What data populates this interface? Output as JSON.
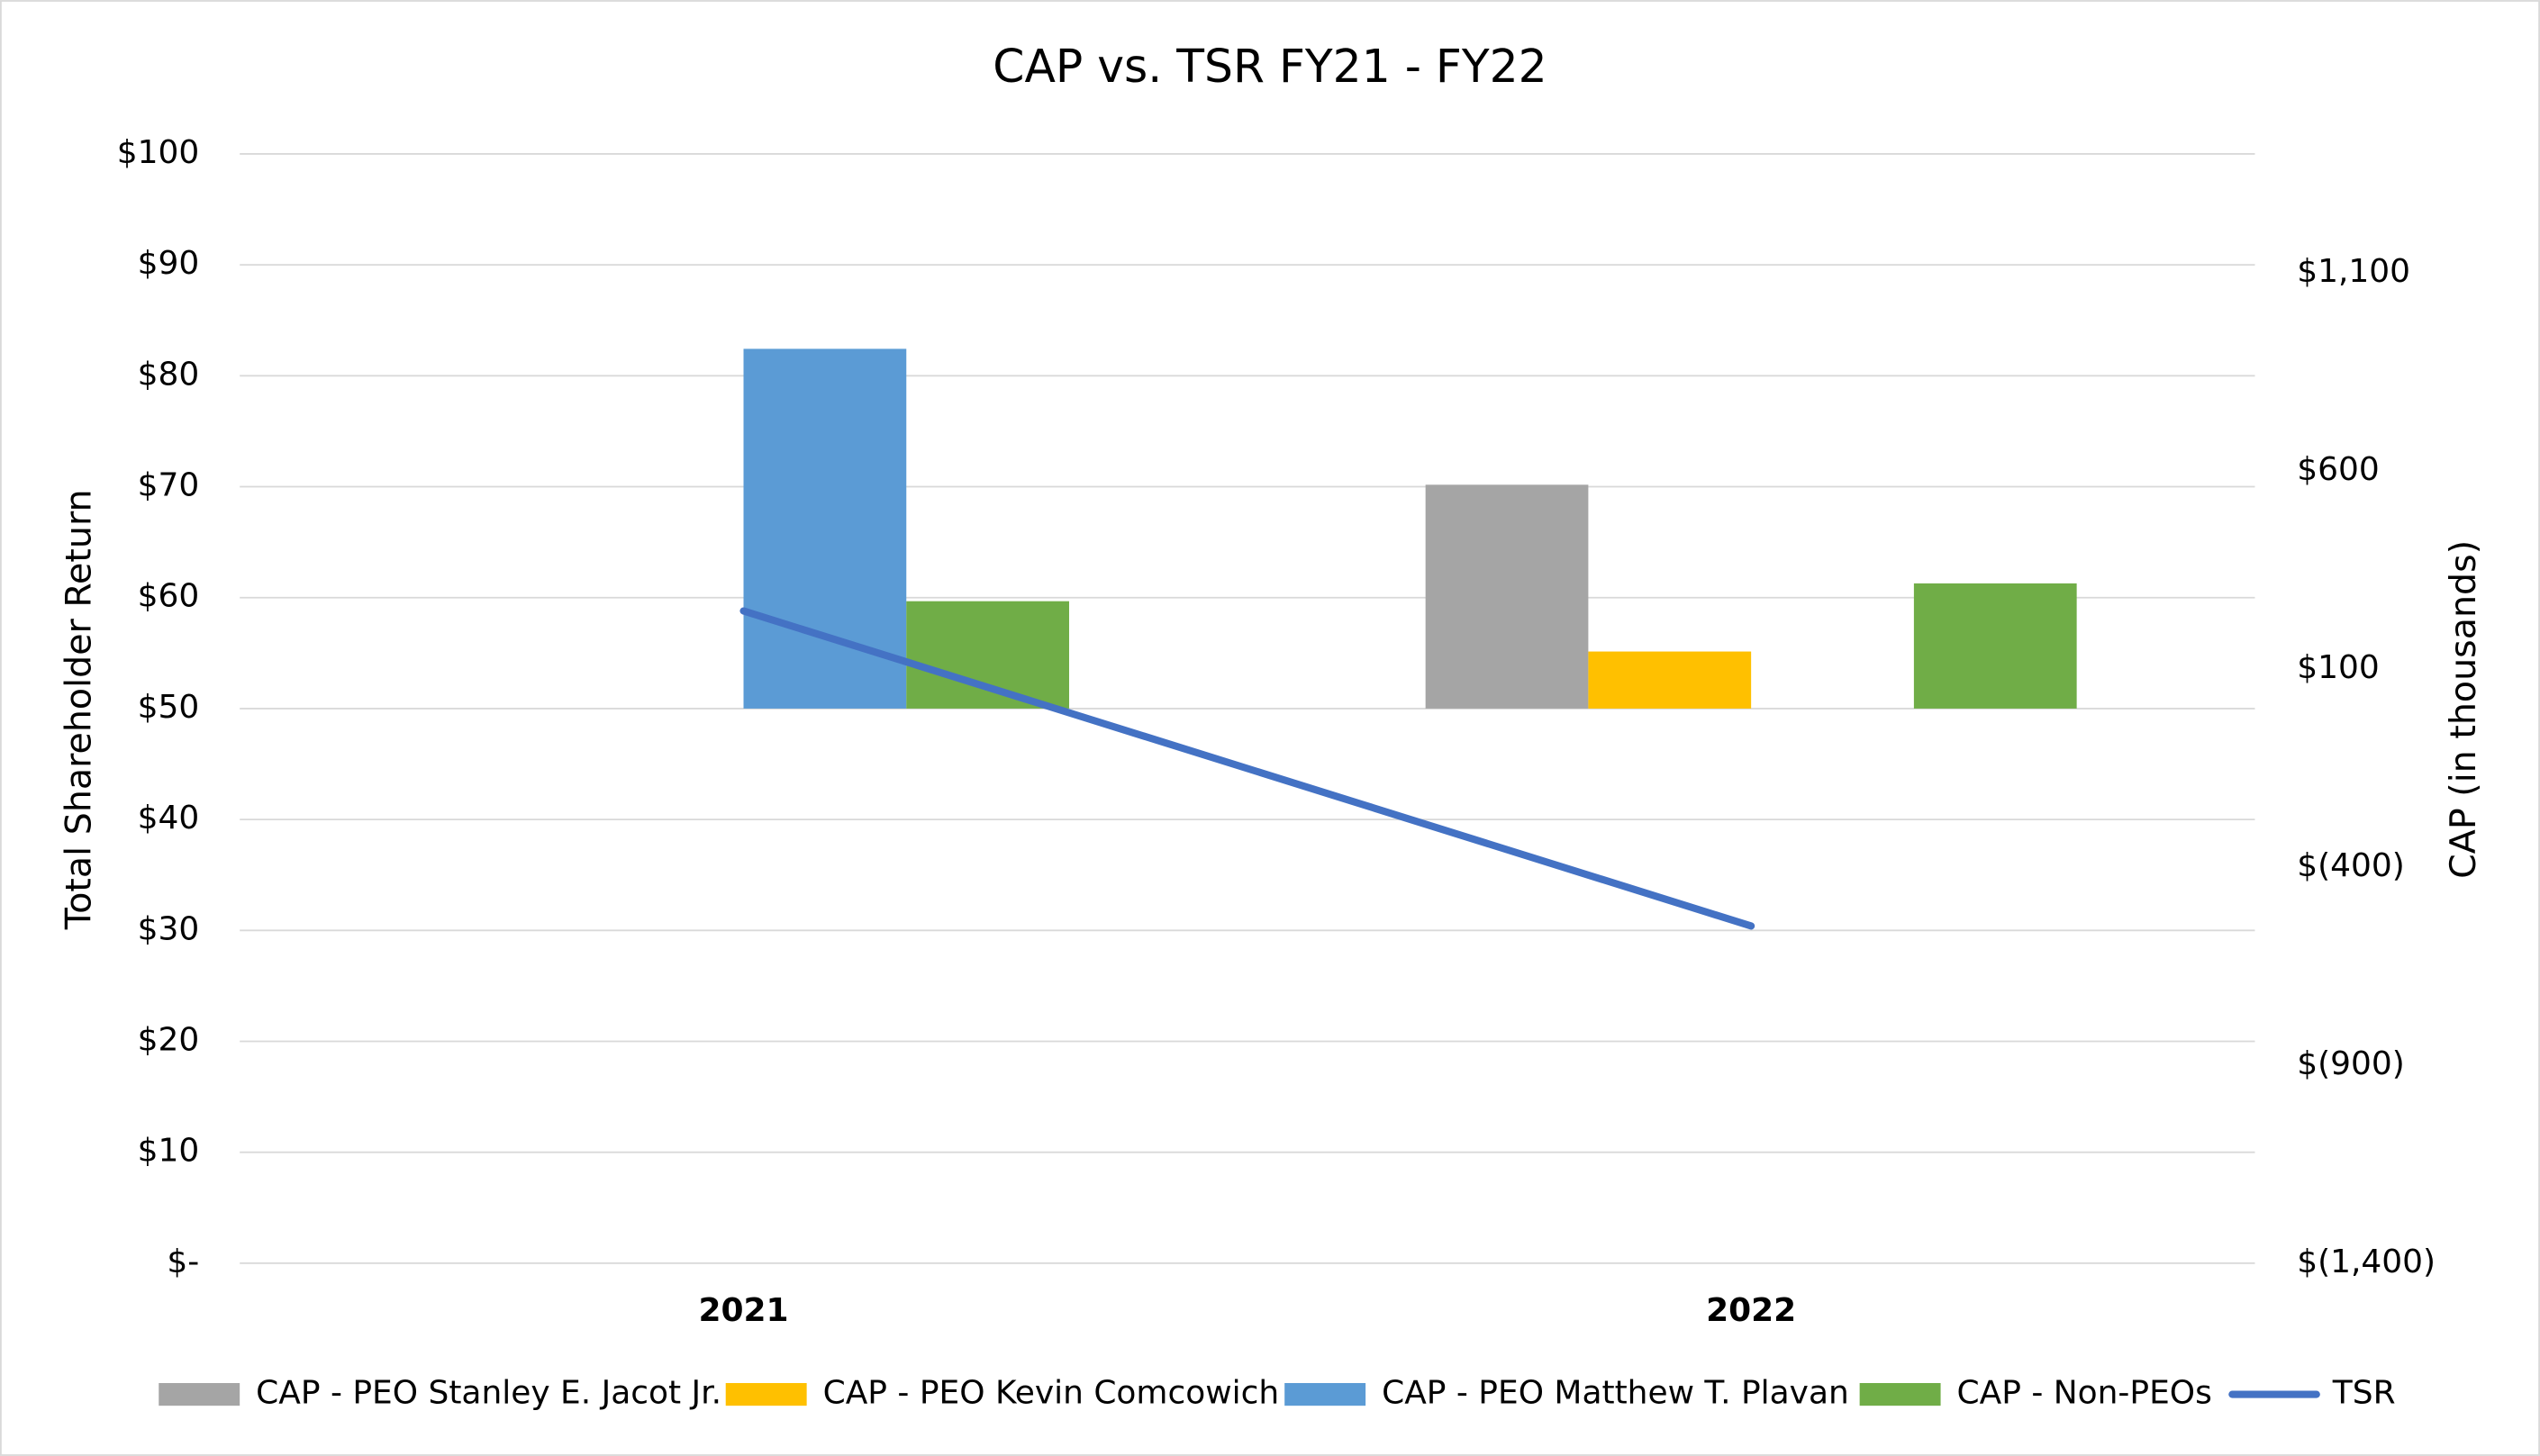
{
  "chart_data": {
    "type": "bar",
    "title": "CAP vs. TSR FY21 - FY22",
    "ylabel": "Total Shareholder Return",
    "y2label": "CAP (in thousands)",
    "categories": [
      "2021",
      "2022"
    ],
    "series": [
      {
        "name": "CAP - PEO Stanley E. Jacot Jr.",
        "color": "#a5a5a5",
        "type": "bar",
        "axis": "y2",
        "values": [
          null,
          565
        ]
      },
      {
        "name": "CAP - PEO Kevin Comcowich",
        "color": "#ffc000",
        "type": "bar",
        "axis": "y2",
        "values": [
          null,
          144
        ]
      },
      {
        "name": "CAP - PEO Matthew T. Plavan",
        "color": "#5b9bd5",
        "type": "bar",
        "axis": "y2",
        "values": [
          908,
          null
        ]
      },
      {
        "name": "CAP - Non-PEOs",
        "color": "#70ad47",
        "type": "bar",
        "axis": "y2",
        "values": [
          271,
          316
        ]
      },
      {
        "name": "TSR",
        "color": "#4472c4",
        "type": "line",
        "values": [
          58.8,
          30.4
        ]
      }
    ],
    "ylim": [
      0,
      100
    ],
    "yticks": [
      {
        "value": 0,
        "label": "$-"
      },
      {
        "value": 10,
        "label": "$10"
      },
      {
        "value": 20,
        "label": "$20"
      },
      {
        "value": 30,
        "label": "$30"
      },
      {
        "value": 40,
        "label": "$40"
      },
      {
        "value": 50,
        "label": "$50"
      },
      {
        "value": 60,
        "label": "$60"
      },
      {
        "value": 70,
        "label": "$70"
      },
      {
        "value": 80,
        "label": "$80"
      },
      {
        "value": 90,
        "label": "$90"
      },
      {
        "value": 100,
        "label": "$100"
      }
    ],
    "y2lim": [
      -1400,
      1400
    ],
    "y2ticks": [
      {
        "value": -1400,
        "label": "$(1,400)"
      },
      {
        "value": -900,
        "label": "$(900)"
      },
      {
        "value": -400,
        "label": "$(400)"
      },
      {
        "value": 100,
        "label": "$100"
      },
      {
        "value": 600,
        "label": "$600"
      },
      {
        "value": 1100,
        "label": "$1,100"
      }
    ],
    "grid": true,
    "legend": "bottom"
  }
}
